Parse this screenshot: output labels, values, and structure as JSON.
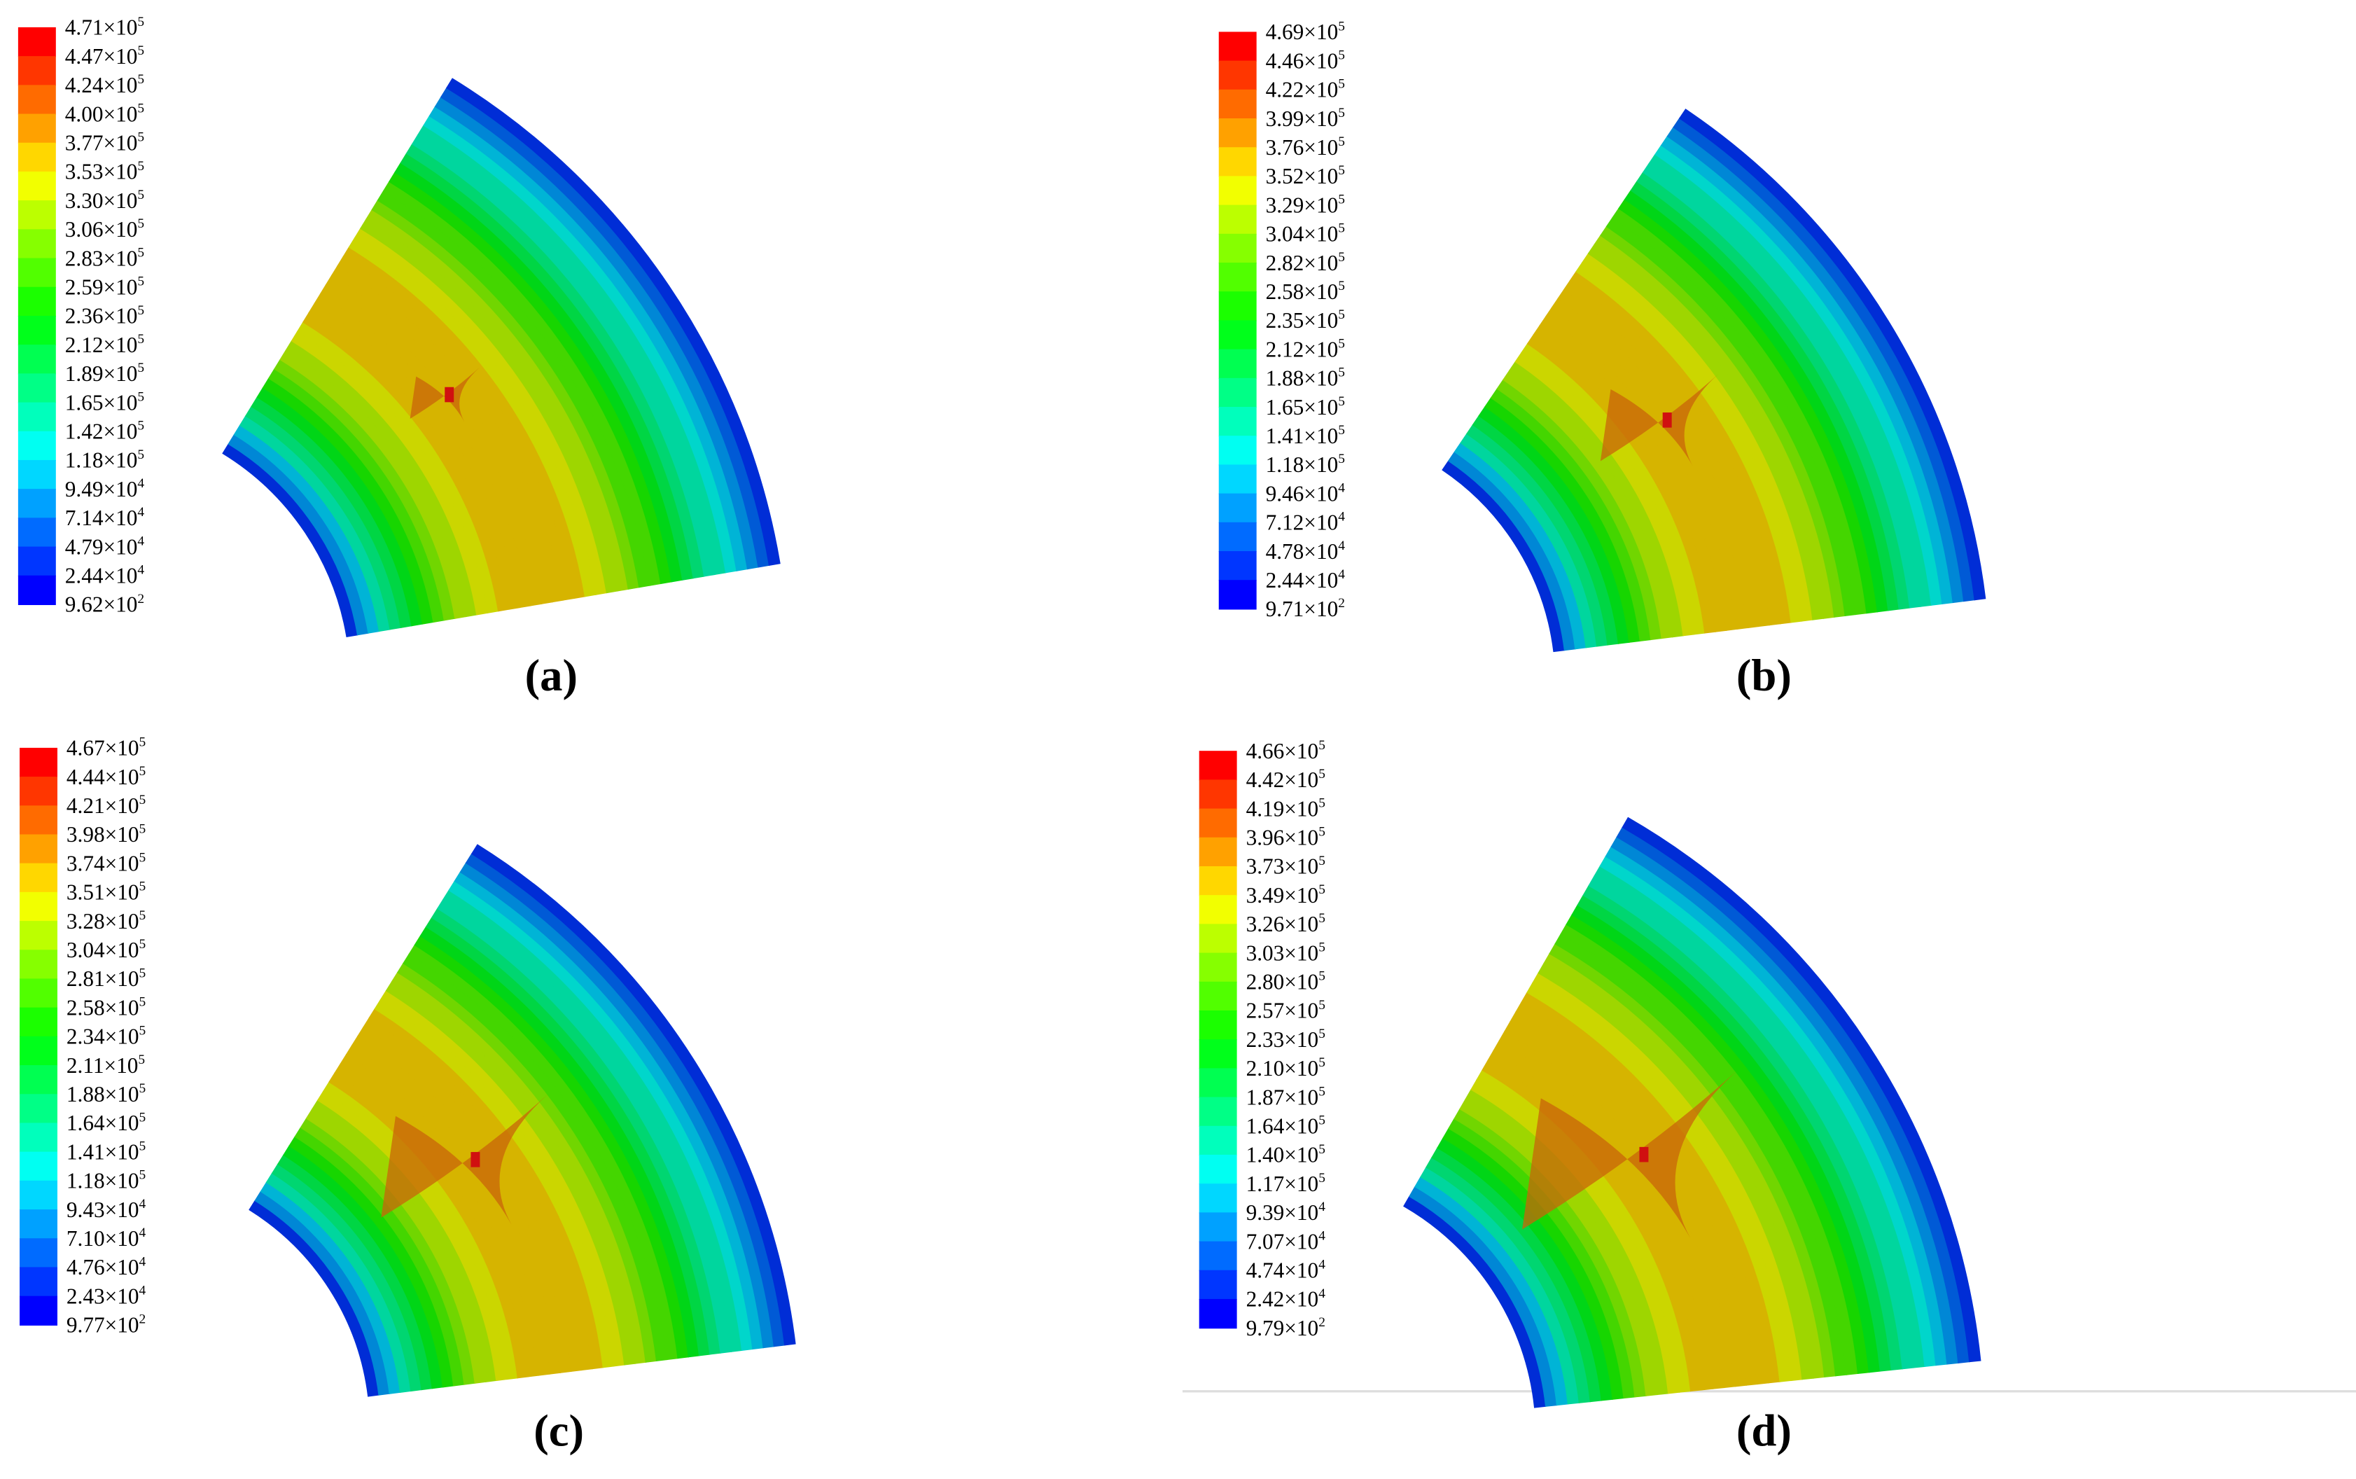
{
  "panels": [
    {
      "caption": "(a)",
      "legend": [
        {
          "base": "4.71×10",
          "exp": "5"
        },
        {
          "base": "4.47×10",
          "exp": "5"
        },
        {
          "base": "4.24×10",
          "exp": "5"
        },
        {
          "base": "4.00×10",
          "exp": "5"
        },
        {
          "base": "3.77×10",
          "exp": "5"
        },
        {
          "base": "3.53×10",
          "exp": "5"
        },
        {
          "base": "3.30×10",
          "exp": "5"
        },
        {
          "base": "3.06×10",
          "exp": "5"
        },
        {
          "base": "2.83×10",
          "exp": "5"
        },
        {
          "base": "2.59×10",
          "exp": "5"
        },
        {
          "base": "2.36×10",
          "exp": "5"
        },
        {
          "base": "2.12×10",
          "exp": "5"
        },
        {
          "base": "1.89×10",
          "exp": "5"
        },
        {
          "base": "1.65×10",
          "exp": "5"
        },
        {
          "base": "1.42×10",
          "exp": "5"
        },
        {
          "base": "1.18×10",
          "exp": "5"
        },
        {
          "base": "9.49×10",
          "exp": "4"
        },
        {
          "base": "7.14×10",
          "exp": "4"
        },
        {
          "base": "4.79×10",
          "exp": "4"
        },
        {
          "base": "2.44×10",
          "exp": "4"
        },
        {
          "base": "9.62×10",
          "exp": "2"
        }
      ]
    },
    {
      "caption": "(b)",
      "legend": [
        {
          "base": "4.69×10",
          "exp": "5"
        },
        {
          "base": "4.46×10",
          "exp": "5"
        },
        {
          "base": "4.22×10",
          "exp": "5"
        },
        {
          "base": "3.99×10",
          "exp": "5"
        },
        {
          "base": "3.76×10",
          "exp": "5"
        },
        {
          "base": "3.52×10",
          "exp": "5"
        },
        {
          "base": "3.29×10",
          "exp": "5"
        },
        {
          "base": "3.04×10",
          "exp": "5"
        },
        {
          "base": "2.82×10",
          "exp": "5"
        },
        {
          "base": "2.58×10",
          "exp": "5"
        },
        {
          "base": "2.35×10",
          "exp": "5"
        },
        {
          "base": "2.12×10",
          "exp": "5"
        },
        {
          "base": "1.88×10",
          "exp": "5"
        },
        {
          "base": "1.65×10",
          "exp": "5"
        },
        {
          "base": "1.41×10",
          "exp": "5"
        },
        {
          "base": "1.18×10",
          "exp": "5"
        },
        {
          "base": "9.46×10",
          "exp": "4"
        },
        {
          "base": "7.12×10",
          "exp": "4"
        },
        {
          "base": "4.78×10",
          "exp": "4"
        },
        {
          "base": "2.44×10",
          "exp": "4"
        },
        {
          "base": "9.71×10",
          "exp": "2"
        }
      ]
    },
    {
      "caption": "(c)",
      "legend": [
        {
          "base": "4.67×10",
          "exp": "5"
        },
        {
          "base": "4.44×10",
          "exp": "5"
        },
        {
          "base": "4.21×10",
          "exp": "5"
        },
        {
          "base": "3.98×10",
          "exp": "5"
        },
        {
          "base": "3.74×10",
          "exp": "5"
        },
        {
          "base": "3.51×10",
          "exp": "5"
        },
        {
          "base": "3.28×10",
          "exp": "5"
        },
        {
          "base": "3.04×10",
          "exp": "5"
        },
        {
          "base": "2.81×10",
          "exp": "5"
        },
        {
          "base": "2.58×10",
          "exp": "5"
        },
        {
          "base": "2.34×10",
          "exp": "5"
        },
        {
          "base": "2.11×10",
          "exp": "5"
        },
        {
          "base": "1.88×10",
          "exp": "5"
        },
        {
          "base": "1.64×10",
          "exp": "5"
        },
        {
          "base": "1.41×10",
          "exp": "5"
        },
        {
          "base": "1.18×10",
          "exp": "5"
        },
        {
          "base": "9.43×10",
          "exp": "4"
        },
        {
          "base": "7.10×10",
          "exp": "4"
        },
        {
          "base": "4.76×10",
          "exp": "4"
        },
        {
          "base": "2.43×10",
          "exp": "4"
        },
        {
          "base": "9.77×10",
          "exp": "2"
        }
      ]
    },
    {
      "caption": "(d)",
      "legend": [
        {
          "base": "4.66×10",
          "exp": "5"
        },
        {
          "base": "4.42×10",
          "exp": "5"
        },
        {
          "base": "4.19×10",
          "exp": "5"
        },
        {
          "base": "3.96×10",
          "exp": "5"
        },
        {
          "base": "3.73×10",
          "exp": "5"
        },
        {
          "base": "3.49×10",
          "exp": "5"
        },
        {
          "base": "3.26×10",
          "exp": "5"
        },
        {
          "base": "3.03×10",
          "exp": "5"
        },
        {
          "base": "2.80×10",
          "exp": "5"
        },
        {
          "base": "2.57×10",
          "exp": "5"
        },
        {
          "base": "2.33×10",
          "exp": "5"
        },
        {
          "base": "2.10×10",
          "exp": "5"
        },
        {
          "base": "1.87×10",
          "exp": "5"
        },
        {
          "base": "1.64×10",
          "exp": "5"
        },
        {
          "base": "1.40×10",
          "exp": "5"
        },
        {
          "base": "1.17×10",
          "exp": "5"
        },
        {
          "base": "9.39×10",
          "exp": "4"
        },
        {
          "base": "7.07×10",
          "exp": "4"
        },
        {
          "base": "4.74×10",
          "exp": "4"
        },
        {
          "base": "2.42×10",
          "exp": "4"
        },
        {
          "base": "9.79×10",
          "exp": "2"
        }
      ]
    }
  ]
}
